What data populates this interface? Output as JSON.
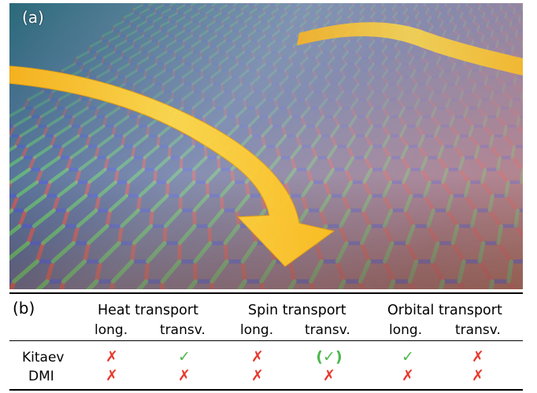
{
  "panel_a": {
    "label": "(a)"
  },
  "panel_b": {
    "label": "(b)",
    "groups": [
      "Heat transport",
      "Spin transport",
      "Orbital transport"
    ],
    "sub_headers": [
      "long.",
      "transv.",
      "long.",
      "transv.",
      "long.",
      "transv."
    ],
    "rows": [
      {
        "label": "Kitaev",
        "cells": [
          "✗",
          "✓",
          "✗",
          "(✓)",
          "✓",
          "✗"
        ]
      },
      {
        "label": "DMI",
        "cells": [
          "✗",
          "✗",
          "✗",
          "✗",
          "✗",
          "✗"
        ]
      }
    ]
  },
  "colors": {
    "bond_red": "#e8382c",
    "bond_green": "#4cd04c",
    "bond_blue": "#2a3ad8",
    "arrow_yellow": "#ffcc33",
    "cross_red": "#e8382c",
    "check_green": "#4cb84c"
  }
}
